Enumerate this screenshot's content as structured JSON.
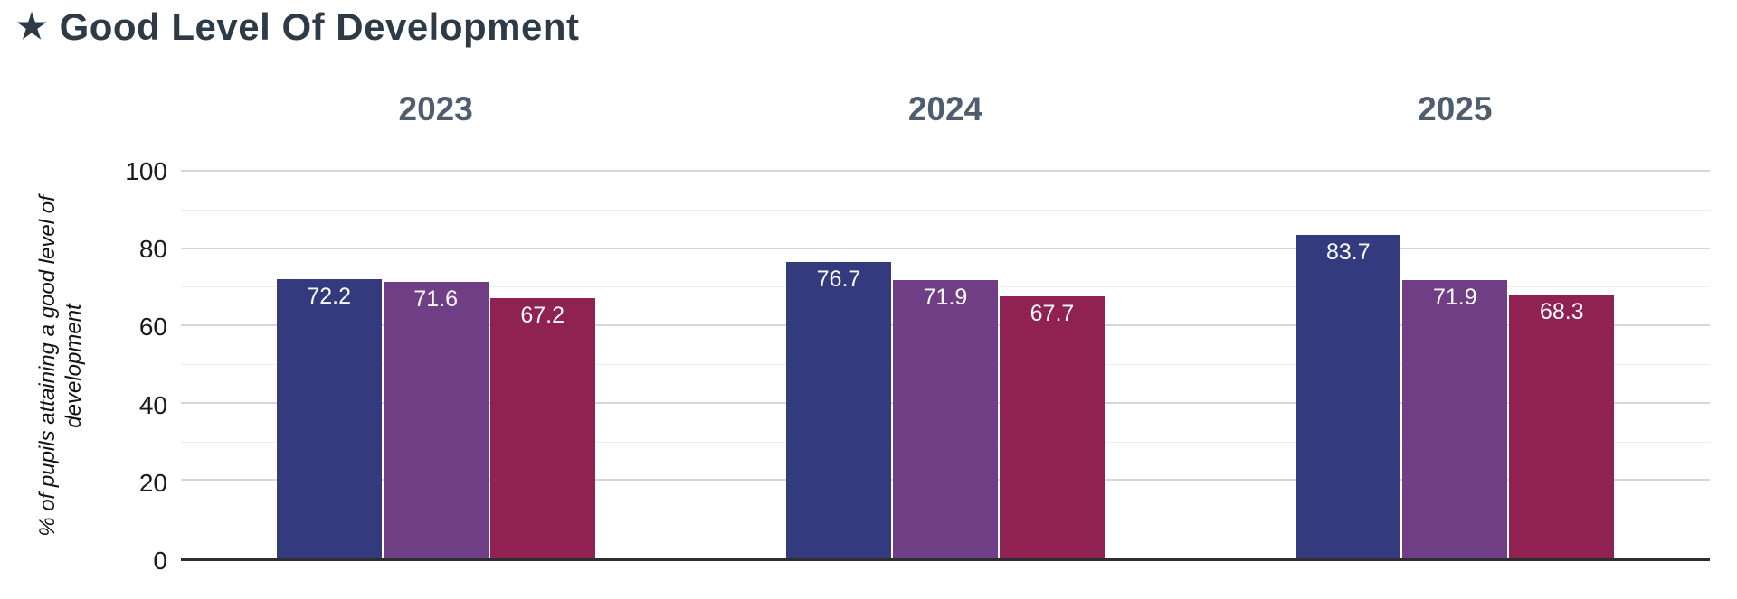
{
  "title": {
    "icon": "★",
    "text": "Good Level Of Development"
  },
  "colors": {
    "background": "#ffffff",
    "title_color": "#2d3b47",
    "group_header": "#4f5e6e",
    "tick_label": "#1b1b1b",
    "axis_line": "#2e2e2e",
    "gridline_major": "#d6d6d6",
    "gridline_minor": "#ededed",
    "bar_value_label": "#fafafa",
    "bar_navy": "#333a7e",
    "bar_purple": "#703e85",
    "bar_magenta": "#8f2153"
  },
  "chart_data": {
    "type": "bar",
    "title": "Good Level Of Development",
    "categories": [
      "2023",
      "2024",
      "2025"
    ],
    "series": [
      {
        "name": "navy",
        "color": "#333a7e",
        "values": [
          72.2,
          76.7,
          83.7
        ]
      },
      {
        "name": "purple",
        "color": "#703e85",
        "values": [
          71.6,
          71.9,
          71.9
        ]
      },
      {
        "name": "magenta",
        "color": "#8f2153",
        "values": [
          67.2,
          67.7,
          68.3
        ]
      }
    ],
    "value_labels": [
      [
        "72.2",
        "71.6",
        "67.2"
      ],
      [
        "76.7",
        "71.9",
        "67.7"
      ],
      [
        "83.7",
        "71.9",
        "68.3"
      ]
    ],
    "xlabel": "",
    "ylabel": "% of pupils attaining a good level of development",
    "ylim": [
      0,
      100
    ],
    "yticks": [
      0,
      20,
      40,
      60,
      80,
      100
    ],
    "minor_grid_step": 10,
    "grid": true,
    "legend": false,
    "value_labels_position": "inside-top"
  }
}
